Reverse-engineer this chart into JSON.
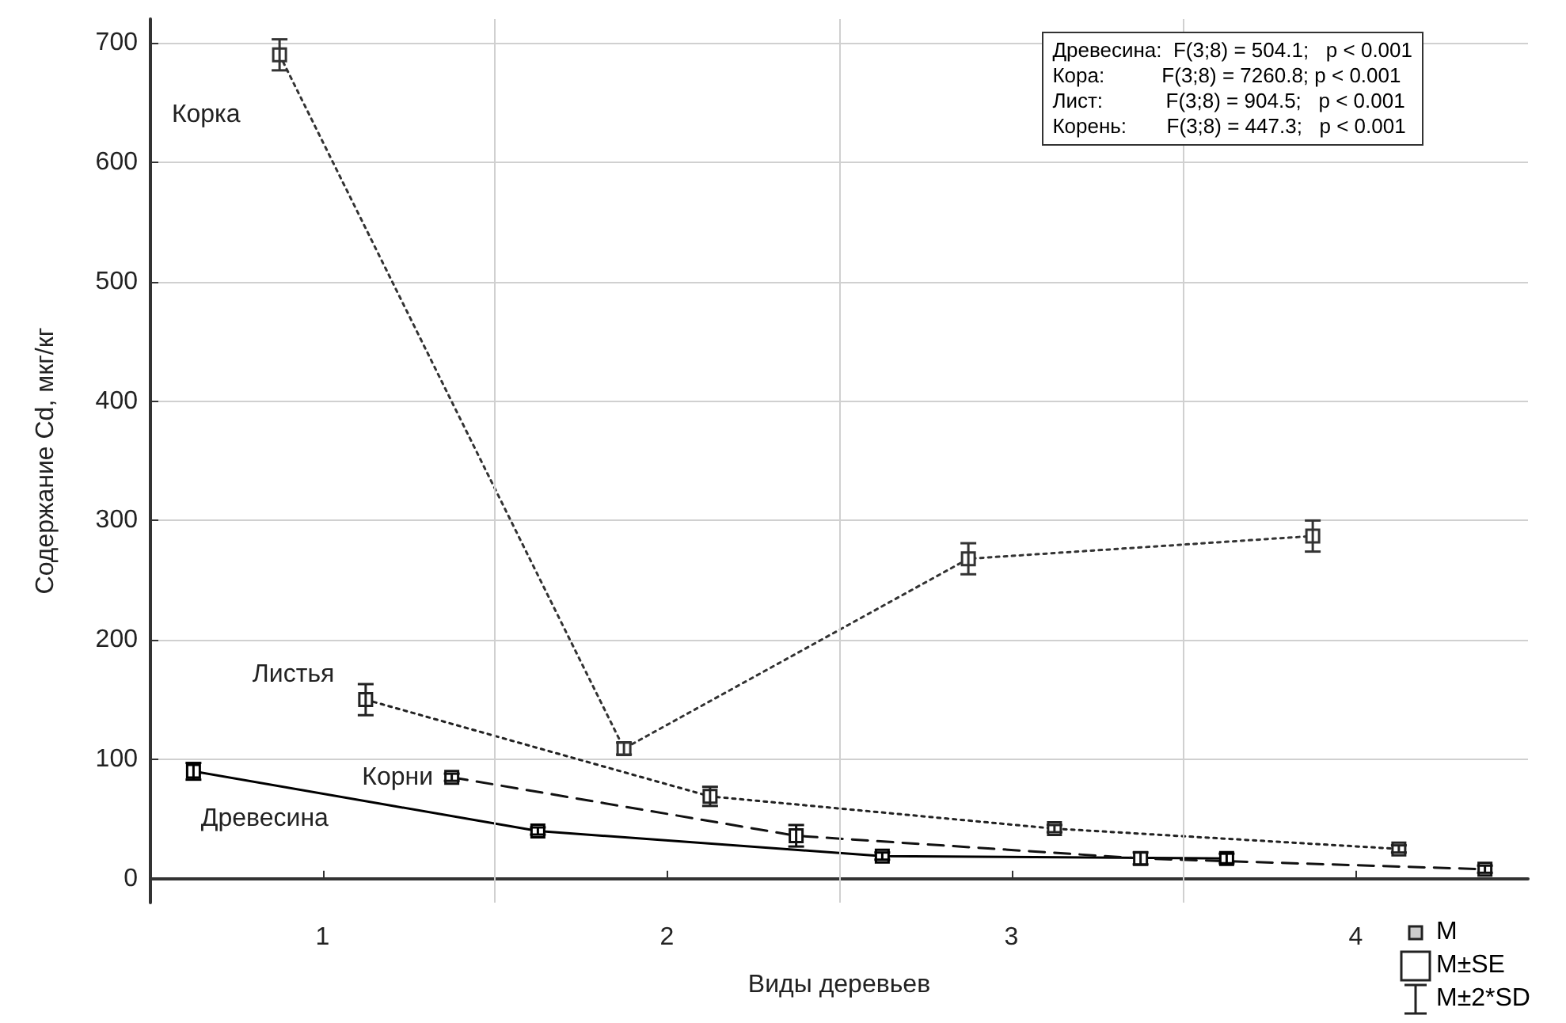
{
  "chart_data": {
    "type": "line",
    "xlabel": "Виды деревьев",
    "ylabel": "Содержание Cd, мкг/кг",
    "xlim": [
      0.5,
      4.5
    ],
    "xticks": [
      1,
      2,
      3,
      4
    ],
    "ylim": [
      -20,
      720
    ],
    "yticks": [
      0,
      100,
      200,
      300,
      400,
      500,
      600,
      700
    ],
    "grid": "y",
    "legend": false,
    "marker": "square",
    "series": [
      {
        "name": "Древесина",
        "color": "#000000",
        "line_style": "solid",
        "x": [
          0.625,
          1.625,
          2.625,
          3.625
        ],
        "values": [
          90,
          40,
          19,
          17
        ],
        "errors": [
          7,
          3,
          3,
          4
        ]
      },
      {
        "name": "Корка",
        "color": "#333333",
        "line_style": "dotted",
        "x": [
          0.875,
          1.875,
          2.875,
          3.875
        ],
        "values": [
          690,
          109,
          268,
          287
        ],
        "errors": [
          13,
          5,
          13,
          13
        ]
      },
      {
        "name": "Листья",
        "color": "#222222",
        "line_style": "dotted",
        "x": [
          1.125,
          2.125,
          3.125,
          4.125
        ],
        "values": [
          150,
          69,
          42,
          25
        ],
        "errors": [
          13,
          8,
          3,
          3
        ]
      },
      {
        "name": "Корни",
        "color": "#111111",
        "line_style": "dashed",
        "x": [
          1.375,
          2.375,
          3.375,
          4.375
        ],
        "values": [
          85,
          36,
          17,
          8
        ],
        "errors": [
          3,
          9,
          5,
          3
        ]
      }
    ],
    "ref_lines": [
      {
        "axis": "x",
        "value": 1.5,
        "color": "#d0d0d0"
      },
      {
        "axis": "x",
        "value": 2.5,
        "color": "#d0d0d0"
      },
      {
        "axis": "x",
        "value": 3.5,
        "color": "#d0d0d0"
      }
    ],
    "annotations": [
      "Древесина:  F(3;8) = 504.1;   p < 0.001",
      "Кора:          F(3;8) = 7260.8; p < 0.001",
      "Лист:           F(3;8) = 904.5;   p < 0.001",
      "Корень:       F(3;8) = 447.3;   p < 0.001",
      "M",
      "M±SE",
      "M±2*SD"
    ]
  }
}
